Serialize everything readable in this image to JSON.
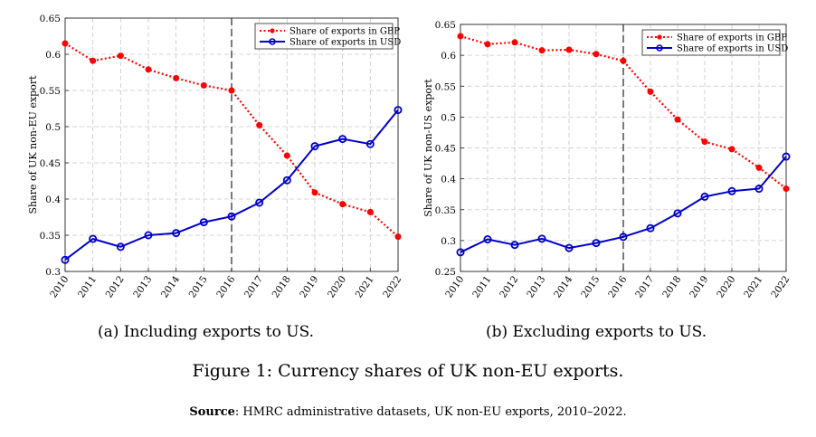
{
  "chart_data": [
    {
      "type": "line",
      "categories": [
        "2010",
        "2011",
        "2012",
        "2013",
        "2014",
        "2015",
        "2016",
        "2017",
        "2018",
        "2019",
        "2020",
        "2021",
        "2022"
      ],
      "ylabel": "Share of UK non-EU export",
      "xlabel": "",
      "ylim": [
        0.3,
        0.65
      ],
      "yticks": [
        "0.3",
        "0.35",
        "0.4",
        "0.45",
        "0.5",
        "0.55",
        "0.6",
        "0.65"
      ],
      "grid": true,
      "vline_at": "2016",
      "legend_position": "top-right",
      "series": [
        {
          "name": "Share of exports in GBP",
          "color": "#ff0000",
          "style": "dotted",
          "values": [
            0.615,
            0.591,
            0.598,
            0.579,
            0.567,
            0.557,
            0.55,
            0.502,
            0.46,
            0.409,
            0.393,
            0.382,
            0.348
          ]
        },
        {
          "name": "Share of exports in USD",
          "color": "#0000cc",
          "style": "solid",
          "values": [
            0.316,
            0.345,
            0.334,
            0.35,
            0.353,
            0.368,
            0.376,
            0.395,
            0.426,
            0.473,
            0.483,
            0.476,
            0.523
          ]
        }
      ]
    },
    {
      "type": "line",
      "categories": [
        "2010",
        "2011",
        "2012",
        "2013",
        "2014",
        "2015",
        "2016",
        "2017",
        "2018",
        "2019",
        "2020",
        "2021",
        "2022"
      ],
      "ylabel": "Share of UK non-US export",
      "xlabel": "",
      "ylim": [
        0.25,
        0.65
      ],
      "yticks": [
        "0.25",
        "0.3",
        "0.35",
        "0.4",
        "0.45",
        "0.5",
        "0.55",
        "0.6",
        "0.65"
      ],
      "grid": true,
      "vline_at": "2016",
      "legend_position": "top-right",
      "series": [
        {
          "name": "Share of exports in GBP",
          "color": "#ff0000",
          "style": "dotted",
          "values": [
            0.631,
            0.618,
            0.621,
            0.608,
            0.609,
            0.602,
            0.591,
            0.541,
            0.496,
            0.46,
            0.448,
            0.418,
            0.384
          ]
        },
        {
          "name": "Share of exports in USD",
          "color": "#0000cc",
          "style": "solid",
          "values": [
            0.281,
            0.302,
            0.293,
            0.303,
            0.288,
            0.296,
            0.306,
            0.32,
            0.344,
            0.371,
            0.38,
            0.384,
            0.436
          ]
        }
      ]
    }
  ],
  "captions": {
    "a": "(a) Including exports to US.",
    "b": "(b) Excluding exports to US.",
    "figure": "Figure 1: Currency shares of UK non-EU exports.",
    "source_label": "Source",
    "source_text": ": HMRC administrative datasets, UK non-EU exports, 2010–2022."
  }
}
